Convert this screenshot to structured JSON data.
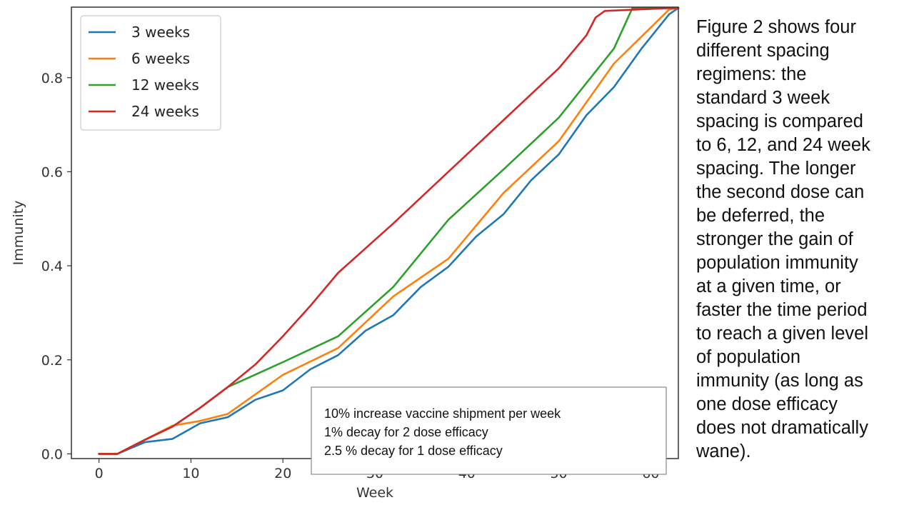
{
  "caption": {
    "text": "Figure 2 shows four\ndifferent spacing\nregimens: the\nstandard 3 week\nspacing is compared\nto 6, 12, and 24 week\nspacing.  The longer\nthe second dose can\nbe deferred, the\nstronger the gain of\npopulation immunity\nat a given time, or\nfaster the time period\nto reach a given level\nof population\nimmunity (as long as\none dose efficacy\ndoes not dramatically\nwane)."
  },
  "annotation": {
    "lines": [
      "10% increase vaccine shipment per week",
      "1% decay for 2 dose efficacy",
      "2.5 % decay for 1 dose efficacy"
    ]
  },
  "chart_data": {
    "type": "line",
    "title": "",
    "xlabel": "Week",
    "ylabel": "Immunity",
    "xlim": [
      -3,
      63
    ],
    "ylim": [
      -0.01,
      0.95
    ],
    "xticks": [
      0,
      10,
      20,
      30,
      40,
      50,
      60
    ],
    "xtick_labels": [
      "0",
      "10",
      "20",
      "30",
      "40",
      "50",
      "60"
    ],
    "yticks": [
      0.0,
      0.2,
      0.4,
      0.6,
      0.8
    ],
    "ytick_labels": [
      "0.0",
      "0.2",
      "0.4",
      "0.6",
      "0.8"
    ],
    "grid": false,
    "legend_position": "top-left",
    "series": [
      {
        "name": "3 weeks",
        "color": "#1f77b4",
        "points": [
          [
            0,
            0
          ],
          [
            2,
            0
          ],
          [
            5,
            0.025
          ],
          [
            8,
            0.032
          ],
          [
            11,
            0.065
          ],
          [
            14,
            0.078
          ],
          [
            17,
            0.115
          ],
          [
            20,
            0.135
          ],
          [
            23,
            0.18
          ],
          [
            26,
            0.21
          ],
          [
            29,
            0.262
          ],
          [
            32,
            0.295
          ],
          [
            35,
            0.355
          ],
          [
            38,
            0.398
          ],
          [
            41,
            0.462
          ],
          [
            44,
            0.51
          ],
          [
            47,
            0.582
          ],
          [
            50,
            0.637
          ],
          [
            53,
            0.72
          ],
          [
            56,
            0.78
          ],
          [
            59,
            0.862
          ],
          [
            62,
            0.935
          ],
          [
            63,
            0.948
          ]
        ]
      },
      {
        "name": "6 weeks",
        "color": "#ff7f0e",
        "points": [
          [
            0,
            0
          ],
          [
            2,
            0
          ],
          [
            5,
            0.03
          ],
          [
            8,
            0.06
          ],
          [
            11,
            0.07
          ],
          [
            14,
            0.085
          ],
          [
            20,
            0.168
          ],
          [
            26,
            0.225
          ],
          [
            32,
            0.335
          ],
          [
            38,
            0.415
          ],
          [
            44,
            0.555
          ],
          [
            50,
            0.665
          ],
          [
            56,
            0.83
          ],
          [
            62,
            0.945
          ],
          [
            63,
            0.948
          ]
        ]
      },
      {
        "name": "12 weeks",
        "color": "#2ca02c",
        "points": [
          [
            0,
            0
          ],
          [
            2,
            0
          ],
          [
            5,
            0.03
          ],
          [
            8,
            0.058
          ],
          [
            11,
            0.098
          ],
          [
            14,
            0.142
          ],
          [
            20,
            0.195
          ],
          [
            26,
            0.25
          ],
          [
            32,
            0.355
          ],
          [
            38,
            0.498
          ],
          [
            44,
            0.605
          ],
          [
            50,
            0.715
          ],
          [
            56,
            0.862
          ],
          [
            58,
            0.948
          ],
          [
            63,
            0.948
          ]
        ]
      },
      {
        "name": "24 weeks",
        "color": "#d62728",
        "points": [
          [
            0,
            0
          ],
          [
            2,
            0
          ],
          [
            5,
            0.03
          ],
          [
            8,
            0.058
          ],
          [
            11,
            0.098
          ],
          [
            14,
            0.142
          ],
          [
            17,
            0.19
          ],
          [
            20,
            0.25
          ],
          [
            23,
            0.315
          ],
          [
            26,
            0.385
          ],
          [
            32,
            0.49
          ],
          [
            38,
            0.6
          ],
          [
            44,
            0.71
          ],
          [
            50,
            0.82
          ],
          [
            53,
            0.89
          ],
          [
            54,
            0.928
          ],
          [
            55,
            0.942
          ],
          [
            62,
            0.948
          ],
          [
            63,
            0.948
          ]
        ]
      }
    ]
  }
}
